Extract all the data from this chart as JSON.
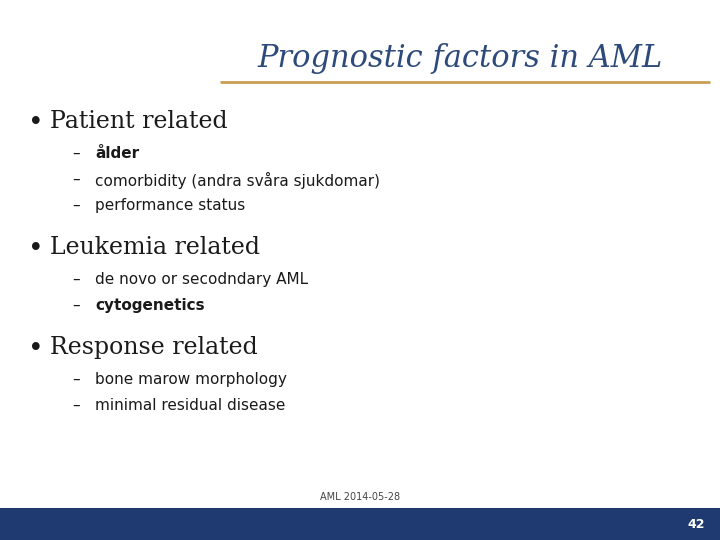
{
  "title": "Prognostic factors in AML",
  "title_color": "#2E4A7A",
  "title_fontsize": 22,
  "separator_color": "#C8A050",
  "background_color": "#FFFFFF",
  "footer_bar_color": "#1E3A70",
  "footer_text": "AML 2014-05-28",
  "footer_page": "42",
  "bullet_color": "#1A1A1A",
  "bullet_fontsize": 17,
  "sub_fontsize": 11,
  "bullets": [
    {
      "text": "Patient related",
      "subs": [
        {
          "text": "ålder",
          "bold": true
        },
        {
          "text": "comorbidity (andra svåra sjukdomar)",
          "bold": false
        },
        {
          "text": "performance status",
          "bold": false
        }
      ]
    },
    {
      "text": "Leukemia related",
      "subs": [
        {
          "text": "de novo or secodndary AML",
          "bold": false
        },
        {
          "text": "cytogenetics",
          "bold": true
        }
      ]
    },
    {
      "text": "Response related",
      "subs": [
        {
          "text": "bone marow morphology",
          "bold": false
        },
        {
          "text": "minimal residual disease",
          "bold": false
        }
      ]
    }
  ]
}
